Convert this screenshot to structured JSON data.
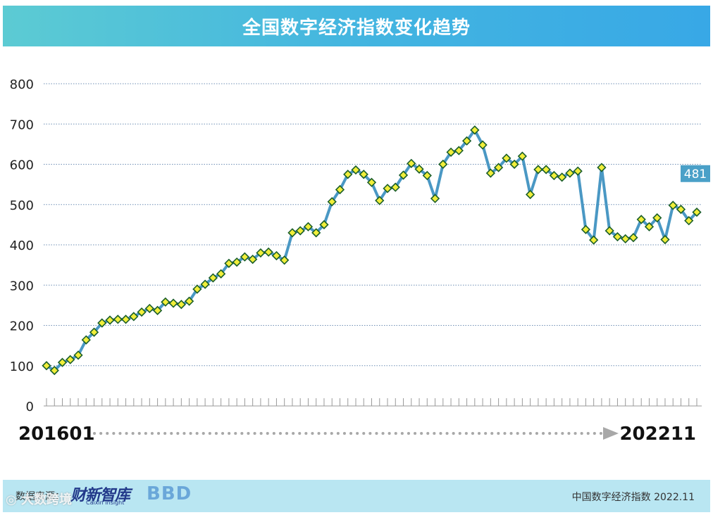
{
  "header": {
    "title": "全国数字经济指数变化趋势"
  },
  "footer": {
    "source_label": "数据来源：",
    "logo_main": "财新智库",
    "logo_sub": "Caixin Insight",
    "logo_bbd": "BBD",
    "right_text": "中国数字经济指数 2022.11"
  },
  "watermark": "◎ 大数跨境",
  "colors": {
    "line": "#4a98c4",
    "marker_fill": "#f1ee3a",
    "marker_stroke": "#1b5e2a",
    "grid": "#6f8fb5",
    "badge": "#4aa0c8",
    "arrow": "#a8a8a8"
  },
  "chart_data": {
    "type": "line",
    "title": "全国数字经济指数变化趋势",
    "start_label": "201601",
    "end_label": "202211",
    "last_value_label": "481",
    "ylim": [
      0,
      800
    ],
    "yticks": [
      "0",
      "100",
      "200",
      "300",
      "400",
      "500",
      "600",
      "700",
      "800"
    ],
    "grid": true,
    "series": [
      {
        "values": [
          100,
          88,
          108,
          115,
          126,
          164,
          183,
          206,
          213,
          215,
          215,
          222,
          233,
          242,
          237,
          258,
          255,
          252,
          260,
          290,
          302,
          318,
          328,
          354,
          357,
          370,
          364,
          380,
          382,
          373,
          362,
          430,
          435,
          445,
          430,
          450,
          507,
          537,
          575,
          586,
          575,
          555,
          510,
          540,
          543,
          573,
          602,
          588,
          572,
          515,
          600,
          630,
          634,
          658,
          685,
          648,
          578,
          592,
          615,
          600,
          620,
          525,
          587,
          587,
          572,
          568,
          578,
          583,
          438,
          412,
          592,
          435,
          420,
          415,
          418,
          463,
          445,
          467,
          413,
          498,
          488,
          460,
          481
        ]
      }
    ]
  }
}
